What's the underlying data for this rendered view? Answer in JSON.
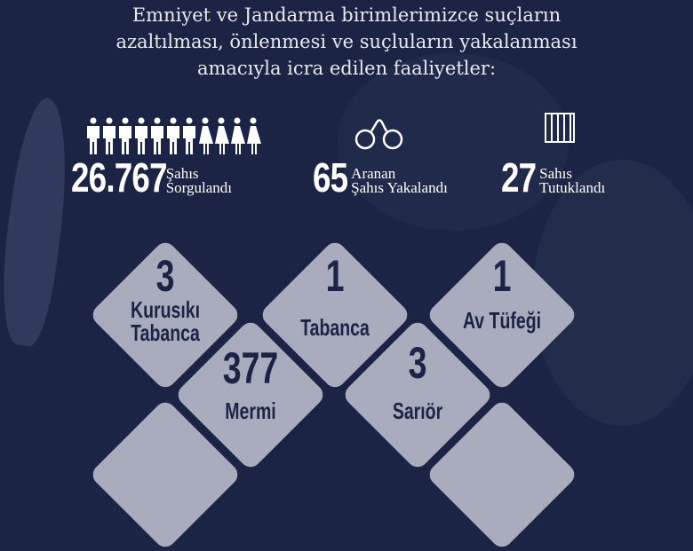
{
  "title": [
    "Emniyet ve Jandarma birimlerimizce suçların",
    "azaltılması, önlenmesi ve suçluların yakalanması",
    "amacıyla icra edilen faaliyetler:"
  ],
  "stats": [
    {
      "value": "26.767",
      "label": [
        "Şahıs",
        "Sorgulandı"
      ],
      "icon": "people-icon"
    },
    {
      "value": "65",
      "label": [
        "Aranan",
        "Şahıs Yakalandı"
      ],
      "icon": "handcuffs-icon"
    },
    {
      "value": "27",
      "label": [
        "Sahıs",
        "Tutuklandı"
      ],
      "icon": "jail-icon"
    }
  ],
  "seized": [
    {
      "value": "3",
      "label": [
        "Kurusıkı",
        "Tabanca"
      ]
    },
    {
      "value": "1",
      "label": [
        "Tabanca"
      ]
    },
    {
      "value": "1",
      "label": [
        "Av Tüfeği"
      ]
    },
    {
      "value": "377",
      "label": [
        "Mermi"
      ]
    },
    {
      "value": "3",
      "label": [
        "Sarıör"
      ]
    }
  ],
  "colors": {
    "background": "#1b2444",
    "diamond": "#a8acbd",
    "text": "#1b2444"
  }
}
